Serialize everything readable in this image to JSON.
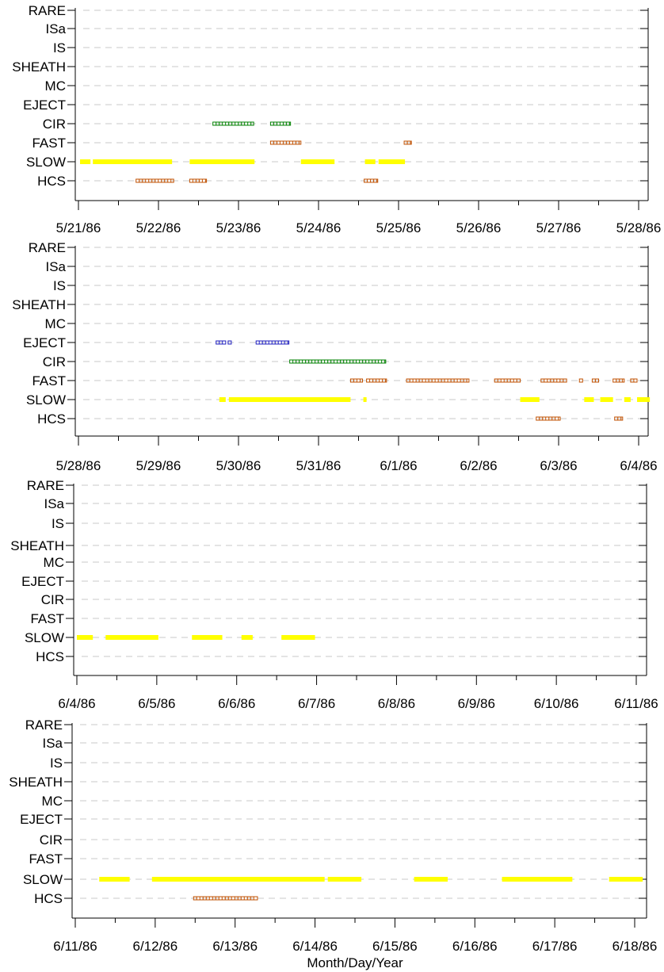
{
  "chart_data": {
    "type": "timeline",
    "xlabel": "Month/Day/Year",
    "categories": [
      "RARE",
      "ISa",
      "IS",
      "SHEATH",
      "MC",
      "EJECT",
      "CIR",
      "FAST",
      "SLOW",
      "HCS"
    ],
    "colors": {
      "SLOW": "#ffff00",
      "CIR": "#008000",
      "FAST": "#c05000",
      "HCS": "#c05000",
      "EJECT": "#2020c0"
    },
    "panels": [
      {
        "xlim": [
          0,
          7
        ],
        "tick_labels": [
          "5/21/86",
          "5/22/86",
          "5/23/86",
          "5/24/86",
          "5/25/86",
          "5/26/86",
          "5/27/86",
          "5/28/86"
        ],
        "intervals": [
          {
            "category": "SLOW",
            "start": 0.02,
            "end": 0.15
          },
          {
            "category": "SLOW",
            "start": 0.18,
            "end": 1.17
          },
          {
            "category": "SLOW",
            "start": 1.39,
            "end": 2.2
          },
          {
            "category": "SLOW",
            "start": 2.78,
            "end": 3.2
          },
          {
            "category": "SLOW",
            "start": 3.58,
            "end": 3.71
          },
          {
            "category": "SLOW",
            "start": 3.75,
            "end": 4.08
          },
          {
            "category": "CIR",
            "start": 1.68,
            "end": 2.19
          },
          {
            "category": "CIR",
            "start": 2.4,
            "end": 2.65
          },
          {
            "category": "FAST",
            "start": 2.4,
            "end": 2.78
          },
          {
            "category": "FAST",
            "start": 4.07,
            "end": 4.16
          },
          {
            "category": "HCS",
            "start": 0.72,
            "end": 1.19
          },
          {
            "category": "HCS",
            "start": 1.39,
            "end": 1.6
          },
          {
            "category": "HCS",
            "start": 3.57,
            "end": 3.74
          }
        ]
      },
      {
        "xlim": [
          0,
          7
        ],
        "tick_labels": [
          "5/28/86",
          "5/29/86",
          "5/30/86",
          "5/31/86",
          "6/1/86",
          "6/2/86",
          "6/3/86",
          "6/4/86"
        ],
        "intervals": [
          {
            "category": "SLOW",
            "start": 1.76,
            "end": 1.84
          },
          {
            "category": "SLOW",
            "start": 1.88,
            "end": 3.4
          },
          {
            "category": "SLOW",
            "start": 3.56,
            "end": 3.6
          },
          {
            "category": "SLOW",
            "start": 5.52,
            "end": 5.76
          },
          {
            "category": "SLOW",
            "start": 6.32,
            "end": 6.44
          },
          {
            "category": "SLOW",
            "start": 6.52,
            "end": 6.68
          },
          {
            "category": "SLOW",
            "start": 6.82,
            "end": 6.9
          },
          {
            "category": "SLOW",
            "start": 6.98,
            "end": 7.14
          },
          {
            "category": "EJECT",
            "start": 1.72,
            "end": 1.84
          },
          {
            "category": "EJECT",
            "start": 1.87,
            "end": 1.91
          },
          {
            "category": "EJECT",
            "start": 2.22,
            "end": 2.63
          },
          {
            "category": "CIR",
            "start": 2.64,
            "end": 3.84
          },
          {
            "category": "FAST",
            "start": 3.4,
            "end": 3.55
          },
          {
            "category": "FAST",
            "start": 3.6,
            "end": 3.85
          },
          {
            "category": "FAST",
            "start": 4.1,
            "end": 4.88
          },
          {
            "category": "FAST",
            "start": 5.2,
            "end": 5.52
          },
          {
            "category": "FAST",
            "start": 5.78,
            "end": 6.1
          },
          {
            "category": "FAST",
            "start": 6.26,
            "end": 6.3
          },
          {
            "category": "FAST",
            "start": 6.42,
            "end": 6.5
          },
          {
            "category": "FAST",
            "start": 6.68,
            "end": 6.82
          },
          {
            "category": "FAST",
            "start": 6.9,
            "end": 6.98
          },
          {
            "category": "HCS",
            "start": 5.72,
            "end": 6.02
          },
          {
            "category": "HCS",
            "start": 6.7,
            "end": 6.8
          }
        ]
      },
      {
        "xlim": [
          0,
          7
        ],
        "tick_labels": [
          "6/4/86",
          "6/5/86",
          "6/6/86",
          "6/7/86",
          "6/8/86",
          "6/9/86",
          "6/10/86",
          "6/11/86"
        ],
        "intervals": [
          {
            "category": "SLOW",
            "start": 0.0,
            "end": 0.2
          },
          {
            "category": "SLOW",
            "start": 0.36,
            "end": 1.02
          },
          {
            "category": "SLOW",
            "start": 1.44,
            "end": 1.82
          },
          {
            "category": "SLOW",
            "start": 2.06,
            "end": 2.2
          },
          {
            "category": "SLOW",
            "start": 2.56,
            "end": 2.98
          }
        ]
      },
      {
        "xlim": [
          0,
          7
        ],
        "tick_labels": [
          "6/11/86",
          "6/12/86",
          "6/13/86",
          "6/14/86",
          "6/15/86",
          "6/16/86",
          "6/17/86",
          "6/18/86"
        ],
        "intervals": [
          {
            "category": "SLOW",
            "start": 0.3,
            "end": 0.68
          },
          {
            "category": "SLOW",
            "start": 0.96,
            "end": 3.12
          },
          {
            "category": "SLOW",
            "start": 3.16,
            "end": 3.58
          },
          {
            "category": "SLOW",
            "start": 4.24,
            "end": 4.66
          },
          {
            "category": "SLOW",
            "start": 5.34,
            "end": 6.22
          },
          {
            "category": "SLOW",
            "start": 6.68,
            "end": 7.1
          },
          {
            "category": "HCS",
            "start": 1.48,
            "end": 2.28
          }
        ]
      }
    ]
  }
}
